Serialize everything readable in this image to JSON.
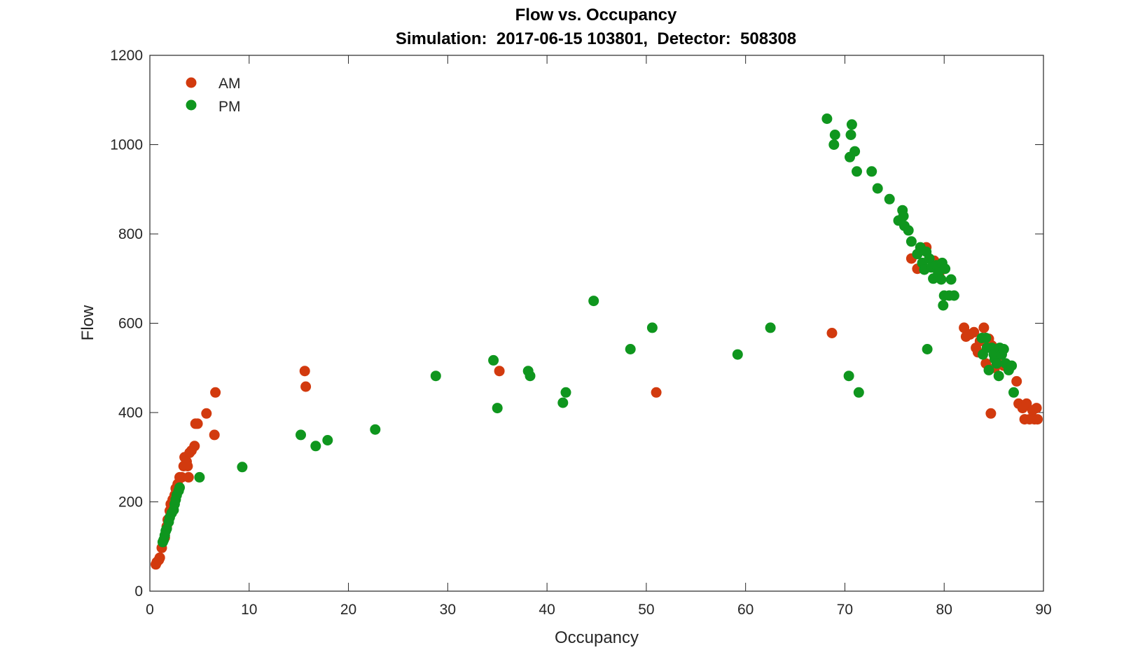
{
  "chart_data": {
    "type": "scatter",
    "title": "Flow vs. Occupancy",
    "subtitle": "Simulation:  2017-06-15 103801,  Detector:  508308",
    "xlabel": "Occupancy",
    "ylabel": "Flow",
    "xlim": [
      0,
      90
    ],
    "ylim": [
      0,
      1200
    ],
    "xticks": [
      "0",
      "10",
      "20",
      "30",
      "40",
      "50",
      "60",
      "70",
      "80",
      "90"
    ],
    "yticks": [
      "0",
      "200",
      "400",
      "600",
      "800",
      "1000",
      "1200"
    ],
    "grid": false,
    "legend_position": "top-left",
    "series": [
      {
        "name": "AM",
        "color": "#d23a0e",
        "points": [
          [
            0.6,
            60
          ],
          [
            0.7,
            65
          ],
          [
            0.9,
            70
          ],
          [
            1.0,
            75
          ],
          [
            1.2,
            97
          ],
          [
            1.5,
            120
          ],
          [
            1.7,
            145
          ],
          [
            1.8,
            160
          ],
          [
            2.0,
            180
          ],
          [
            2.1,
            195
          ],
          [
            2.3,
            205
          ],
          [
            2.5,
            215
          ],
          [
            2.6,
            230
          ],
          [
            2.8,
            240
          ],
          [
            3.0,
            255
          ],
          [
            3.2,
            255
          ],
          [
            3.4,
            280
          ],
          [
            3.5,
            300
          ],
          [
            3.7,
            290
          ],
          [
            3.8,
            280
          ],
          [
            3.9,
            255
          ],
          [
            4.0,
            310
          ],
          [
            4.2,
            315
          ],
          [
            4.5,
            325
          ],
          [
            4.6,
            375
          ],
          [
            4.8,
            375
          ],
          [
            5.7,
            398
          ],
          [
            6.5,
            350
          ],
          [
            6.6,
            445
          ],
          [
            15.6,
            493
          ],
          [
            15.7,
            458
          ],
          [
            35.2,
            493
          ],
          [
            51.0,
            445
          ],
          [
            68.7,
            578
          ],
          [
            76.7,
            745
          ],
          [
            77.3,
            722
          ],
          [
            78.2,
            770
          ],
          [
            79.0,
            740
          ],
          [
            79.5,
            712
          ],
          [
            82.0,
            590
          ],
          [
            82.2,
            570
          ],
          [
            82.6,
            575
          ],
          [
            83.0,
            580
          ],
          [
            83.2,
            545
          ],
          [
            83.4,
            535
          ],
          [
            83.6,
            560
          ],
          [
            84.0,
            590
          ],
          [
            84.2,
            510
          ],
          [
            84.5,
            565
          ],
          [
            84.8,
            550
          ],
          [
            85.1,
            500
          ],
          [
            85.4,
            525
          ],
          [
            86.0,
            505
          ],
          [
            84.7,
            398
          ],
          [
            87.3,
            470
          ],
          [
            87.5,
            420
          ],
          [
            87.9,
            410
          ],
          [
            88.1,
            385
          ],
          [
            88.3,
            420
          ],
          [
            88.6,
            385
          ],
          [
            88.9,
            405
          ],
          [
            89.1,
            385
          ],
          [
            89.3,
            410
          ],
          [
            89.4,
            385
          ]
        ]
      },
      {
        "name": "PM",
        "color": "#0f961e",
        "points": [
          [
            1.3,
            110
          ],
          [
            1.4,
            115
          ],
          [
            1.5,
            125
          ],
          [
            1.6,
            135
          ],
          [
            1.7,
            140
          ],
          [
            1.9,
            155
          ],
          [
            2.0,
            165
          ],
          [
            2.2,
            175
          ],
          [
            2.4,
            182
          ],
          [
            2.5,
            195
          ],
          [
            2.6,
            205
          ],
          [
            2.7,
            215
          ],
          [
            2.9,
            225
          ],
          [
            3.0,
            232
          ],
          [
            5.0,
            255
          ],
          [
            9.3,
            278
          ],
          [
            15.2,
            350
          ],
          [
            16.7,
            325
          ],
          [
            17.9,
            338
          ],
          [
            22.7,
            362
          ],
          [
            28.8,
            482
          ],
          [
            34.6,
            517
          ],
          [
            35.0,
            410
          ],
          [
            38.1,
            493
          ],
          [
            38.3,
            482
          ],
          [
            41.6,
            422
          ],
          [
            41.9,
            445
          ],
          [
            44.7,
            650
          ],
          [
            48.4,
            542
          ],
          [
            50.6,
            590
          ],
          [
            59.2,
            530
          ],
          [
            62.5,
            590
          ],
          [
            68.2,
            1058
          ],
          [
            68.9,
            1000
          ],
          [
            69.0,
            1022
          ],
          [
            70.4,
            482
          ],
          [
            70.5,
            972
          ],
          [
            70.6,
            1022
          ],
          [
            70.7,
            1045
          ],
          [
            71.0,
            985
          ],
          [
            71.2,
            940
          ],
          [
            71.4,
            445
          ],
          [
            72.7,
            940
          ],
          [
            73.3,
            902
          ],
          [
            74.5,
            878
          ],
          [
            75.4,
            830
          ],
          [
            75.8,
            853
          ],
          [
            75.9,
            840
          ],
          [
            76.0,
            818
          ],
          [
            76.4,
            808
          ],
          [
            76.7,
            783
          ],
          [
            77.3,
            755
          ],
          [
            77.6,
            770
          ],
          [
            77.8,
            735
          ],
          [
            78.0,
            720
          ],
          [
            78.2,
            760
          ],
          [
            78.3,
            542
          ],
          [
            78.5,
            745
          ],
          [
            78.7,
            725
          ],
          [
            78.9,
            700
          ],
          [
            79.2,
            730
          ],
          [
            79.4,
            712
          ],
          [
            79.7,
            698
          ],
          [
            79.8,
            735
          ],
          [
            79.9,
            640
          ],
          [
            80.0,
            662
          ],
          [
            80.1,
            722
          ],
          [
            80.5,
            662
          ],
          [
            80.7,
            698
          ],
          [
            81.0,
            662
          ],
          [
            83.8,
            567
          ],
          [
            83.9,
            530
          ],
          [
            84.2,
            567
          ],
          [
            84.3,
            545
          ],
          [
            84.5,
            495
          ],
          [
            84.8,
            545
          ],
          [
            85.0,
            530
          ],
          [
            85.1,
            520
          ],
          [
            85.3,
            510
          ],
          [
            85.5,
            482
          ],
          [
            85.6,
            545
          ],
          [
            85.8,
            530
          ],
          [
            86.0,
            542
          ],
          [
            86.2,
            510
          ],
          [
            86.5,
            495
          ],
          [
            86.8,
            505
          ],
          [
            87.0,
            445
          ]
        ]
      }
    ]
  }
}
